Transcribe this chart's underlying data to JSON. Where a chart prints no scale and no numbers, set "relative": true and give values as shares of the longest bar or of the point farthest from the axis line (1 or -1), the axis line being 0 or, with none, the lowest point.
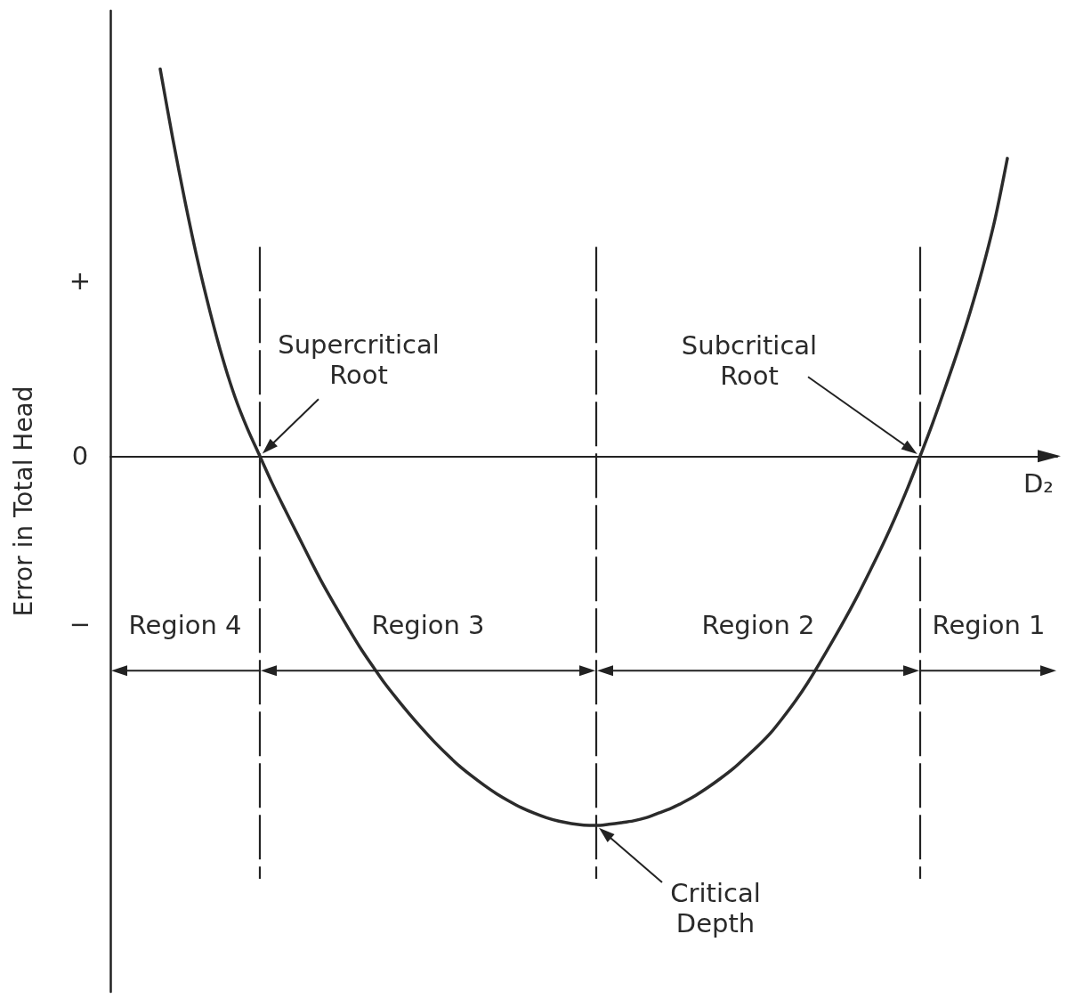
{
  "chart_data": {
    "type": "line",
    "xlabel": "D₂",
    "ylabel": "Error in Total Head",
    "relative": true,
    "grid": "x",
    "categories": [
      null,
      null,
      null,
      null,
      null,
      null,
      null,
      null,
      null,
      null,
      null,
      null,
      null,
      null,
      null,
      null,
      null,
      null,
      null,
      null,
      null,
      null,
      null,
      null,
      null,
      null,
      null,
      null,
      null,
      null,
      null,
      null,
      null,
      null,
      null,
      null,
      null,
      null,
      null,
      null,
      null,
      null,
      null,
      null,
      null,
      null,
      null,
      null,
      null,
      null,
      null,
      null,
      null,
      null,
      null,
      null,
      null,
      null,
      null,
      null,
      null,
      null,
      null,
      null,
      null,
      null,
      null,
      null,
      null,
      null,
      null,
      null,
      null,
      null,
      null,
      null,
      null
    ],
    "color": "#2b2b2b",
    "values": [
      null,
      null,
      null,
      null,
      1,
      0.822,
      0.657,
      0.506,
      0.373,
      0.254,
      0.153,
      0.071,
      0,
      -0.071,
      -0.137,
      -0.201,
      -0.265,
      -0.327,
      -0.384,
      -0.439,
      -0.492,
      -0.54,
      -0.586,
      -0.627,
      -0.666,
      -0.703,
      -0.738,
      -0.77,
      -0.8,
      -0.826,
      -0.85,
      -0.872,
      -0.891,
      -0.908,
      -0.922,
      -0.934,
      -0.943,
      -0.949,
      -0.953,
      -0.954,
      -0.951,
      -0.947,
      -0.942,
      -0.934,
      -0.922,
      -0.91,
      -0.894,
      -0.876,
      -0.855,
      -0.832,
      -0.807,
      -0.778,
      -0.748,
      -0.715,
      -0.675,
      -0.632,
      -0.584,
      -0.531,
      -0.476,
      -0.419,
      -0.359,
      -0.295,
      -0.229,
      -0.158,
      -0.082,
      0,
      0.085,
      0.176,
      0.27,
      0.371,
      0.483,
      0.611,
      0.769,
      null,
      null,
      null,
      null
    ],
    "annotations": [
      "+",
      "0",
      "−",
      "Supercritical Root",
      "Critical Depth",
      "Subcritical Root",
      "Region 4",
      "Region 3",
      "Region 2",
      "Region 1"
    ]
  }
}
